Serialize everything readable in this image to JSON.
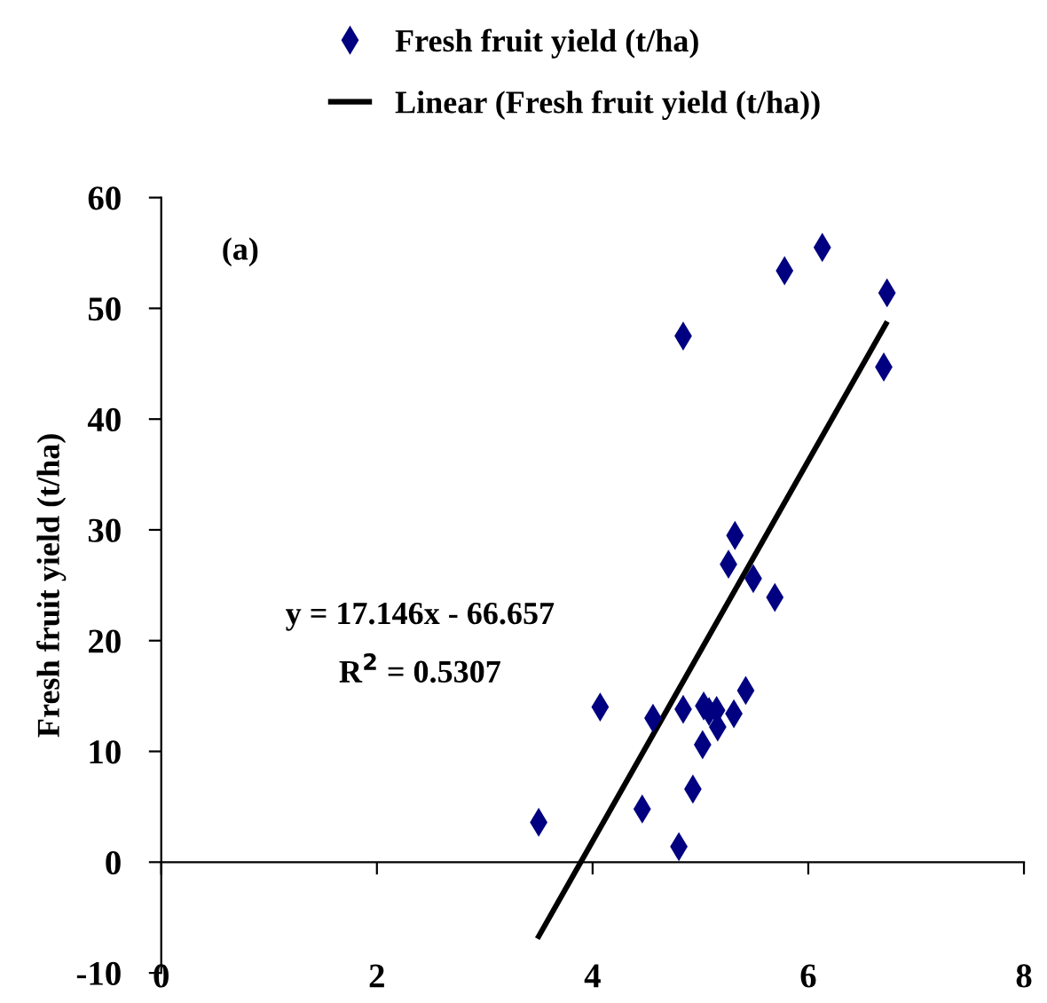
{
  "chart_data": {
    "type": "scatter",
    "ylabel": "Fresh fruit yield (t/ha)",
    "xlim": [
      0,
      8
    ],
    "xticks": [
      0,
      2,
      4,
      6,
      8
    ],
    "ylim": [
      -10,
      60
    ],
    "yticks": [
      -10,
      0,
      10,
      20,
      30,
      40,
      50,
      60
    ],
    "legend": "top",
    "marker": "diamond",
    "series": [
      {
        "name": "Fresh fruit yield (t/ha)",
        "color": "#000080",
        "x": [
          3.5,
          4.07,
          4.46,
          4.56,
          4.8,
          4.84,
          4.84,
          4.93,
          5.02,
          5.03,
          5.08,
          5.15,
          5.16,
          5.31,
          5.42,
          5.26,
          5.32,
          5.49,
          5.69,
          5.78,
          6.13,
          6.73,
          6.7
        ],
        "values": [
          3.6,
          14,
          4.8,
          13,
          1.4,
          47.5,
          13.8,
          6.6,
          10.6,
          14.1,
          13.6,
          13.7,
          12.2,
          13.4,
          15.5,
          26.9,
          29.5,
          25.6,
          23.9,
          53.4,
          55.5,
          51.4,
          44.7
        ]
      },
      {
        "name": "Linear (Fresh fruit yield (t/ha))",
        "color": "#000000",
        "type": "line",
        "marker": "none",
        "line_style": "solid",
        "x": [
          3.5,
          6.72
        ],
        "values": [
          -6.7,
          48.6
        ]
      }
    ],
    "annotations": [
      "(a)",
      "y = 17.146x - 66.657",
      "R$^{2}$ = 0.5307"
    ]
  }
}
